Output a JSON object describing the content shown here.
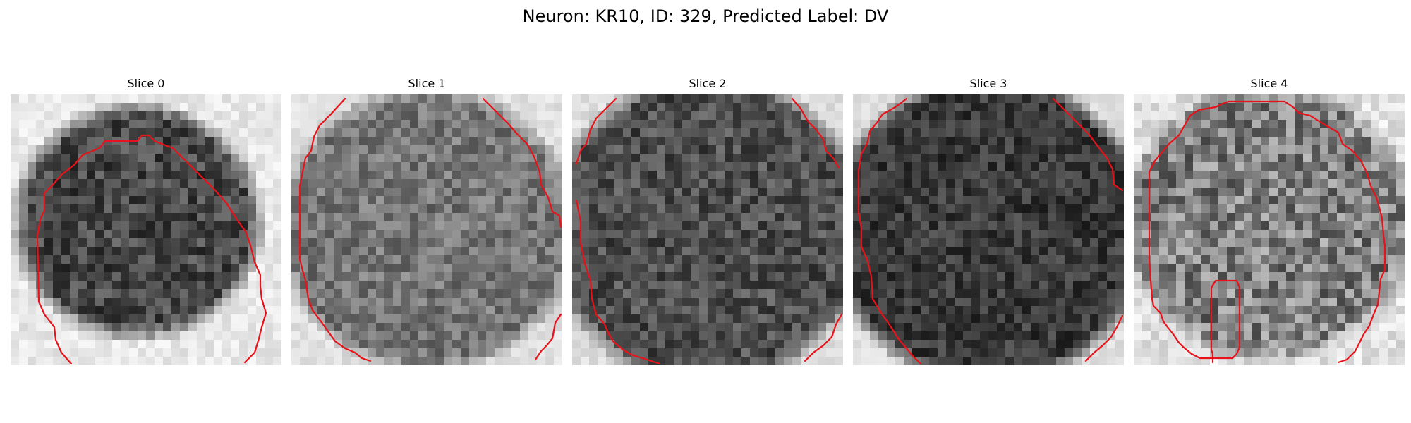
{
  "figure": {
    "title": "Neuron: KR10, ID: 329, Predicted Label: DV",
    "contour_color": "#e8121a"
  },
  "panels": [
    {
      "title": "Slice 0"
    },
    {
      "title": "Slice 1"
    },
    {
      "title": "Slice 2"
    },
    {
      "title": "Slice 3"
    },
    {
      "title": "Slice 4"
    }
  ]
}
